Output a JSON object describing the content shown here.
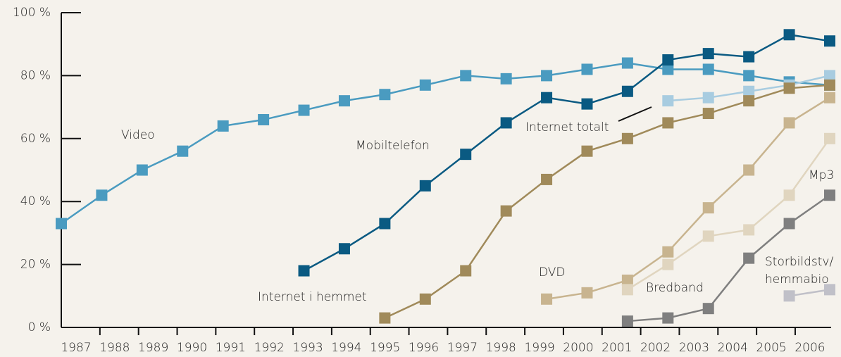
{
  "chart_data": {
    "type": "line",
    "categories": [
      "1987",
      "1988",
      "1989",
      "1990",
      "1991",
      "1992",
      "1993",
      "1994",
      "1995",
      "1996",
      "1997",
      "1998",
      "1999",
      "2000",
      "2001",
      "2002",
      "2003",
      "2004",
      "2005",
      "2006"
    ],
    "ylim": [
      0,
      100
    ],
    "yticks": [
      {
        "value": 0,
        "label": "0 %"
      },
      {
        "value": 20,
        "label": "20 %"
      },
      {
        "value": 40,
        "label": "40 %"
      },
      {
        "value": 60,
        "label": "60 %"
      },
      {
        "value": 80,
        "label": "80 %"
      },
      {
        "value": 100,
        "label": "100 %"
      }
    ],
    "series": [
      {
        "name": "Video",
        "color": "#4a9bc0",
        "values": [
          33,
          42,
          50,
          56,
          64,
          66,
          69,
          72,
          74,
          77,
          80,
          79,
          80,
          82,
          84,
          82,
          82,
          80,
          78,
          77
        ]
      },
      {
        "name": "Mobiltelefon",
        "color": "#0a5a82",
        "values": [
          null,
          null,
          null,
          null,
          null,
          null,
          18,
          25,
          33,
          45,
          55,
          65,
          73,
          71,
          75,
          85,
          87,
          86,
          93,
          91
        ]
      },
      {
        "name": "Internet totalt",
        "color": "#a8cce0",
        "values": [
          null,
          null,
          null,
          null,
          null,
          null,
          null,
          null,
          null,
          null,
          null,
          null,
          null,
          null,
          null,
          72,
          73,
          75,
          77,
          80
        ]
      },
      {
        "name": "Internet i hemmet",
        "color": "#a08a5a",
        "values": [
          null,
          null,
          null,
          null,
          null,
          null,
          null,
          null,
          3,
          9,
          18,
          37,
          47,
          56,
          60,
          65,
          68,
          72,
          76,
          77
        ]
      },
      {
        "name": "DVD",
        "color": "#c8b48f",
        "values": [
          null,
          null,
          null,
          null,
          null,
          null,
          null,
          null,
          null,
          null,
          null,
          null,
          9,
          11,
          15,
          24,
          38,
          50,
          65,
          73
        ]
      },
      {
        "name": "Bredband",
        "color": "#e0d5bf",
        "values": [
          null,
          null,
          null,
          null,
          null,
          null,
          null,
          null,
          null,
          null,
          null,
          null,
          null,
          null,
          12,
          20,
          29,
          31,
          42,
          60
        ]
      },
      {
        "name": "Mp3",
        "color": "#7f7f7f",
        "values": [
          null,
          null,
          null,
          null,
          null,
          null,
          null,
          null,
          null,
          null,
          null,
          null,
          null,
          null,
          2,
          3,
          6,
          22,
          33,
          42
        ]
      },
      {
        "name": "Storbildstv/\nhemmabio",
        "color": "#c0c0c8",
        "values": [
          null,
          null,
          null,
          null,
          null,
          null,
          null,
          null,
          null,
          null,
          null,
          null,
          null,
          null,
          null,
          null,
          null,
          null,
          10,
          12
        ]
      }
    ]
  }
}
